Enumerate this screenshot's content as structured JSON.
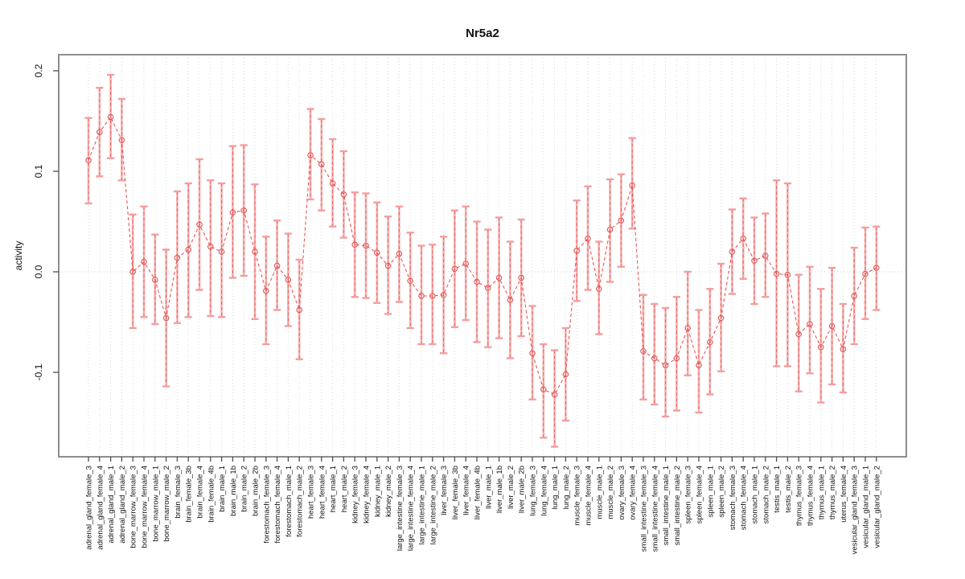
{
  "title": "Nr5a2",
  "y_axis": {
    "label": "activity",
    "tick_labels": [
      "0.2",
      "0.1",
      "0.0",
      "-0.1"
    ],
    "tick_values": [
      0.2,
      0.1,
      0.0,
      -0.1
    ]
  },
  "chart_data": {
    "type": "line",
    "title": "Nr5a2",
    "xlabel": "",
    "ylabel": "activity",
    "ylim": [
      -0.184,
      0.216
    ],
    "yticks": [
      0.2,
      0.1,
      0.0,
      -0.1
    ],
    "grid": "vertical dotted gridline at every category; dotted horizontal line at y=0",
    "legend": "none",
    "marker": "open-circle",
    "line_style": "dashed",
    "error_bars": "95% CI whiskers with caps",
    "categories": [
      "adrenal_gland_female_3",
      "adrenal_gland_female_4",
      "adrenal_gland_male_1",
      "adrenal_gland_male_2",
      "bone_marrow_female_3",
      "bone_marrow_female_4",
      "bone_marrow_male_1",
      "bone_marrow_male_2",
      "brain_female_3",
      "brain_female_3b",
      "brain_female_4",
      "brain_female_4b",
      "brain_male_1",
      "brain_male_1b",
      "brain_male_2",
      "brain_male_2b",
      "forestomach_female_3",
      "forestomach_female_4",
      "forestomach_male_1",
      "forestomach_male_2",
      "heart_female_3",
      "heart_female_4",
      "heart_male_1",
      "heart_male_2",
      "kidney_female_3",
      "kidney_female_4",
      "kidney_male_1",
      "kidney_male_2",
      "large_intestine_female_3",
      "large_intestine_female_4",
      "large_intestine_male_1",
      "large_intestine_male_2",
      "liver_female_3",
      "liver_female_3b",
      "liver_female_4",
      "liver_female_4b",
      "liver_male_1",
      "liver_male_1b",
      "liver_male_2",
      "liver_male_2b",
      "lung_female_3",
      "lung_female_4",
      "lung_male_1",
      "lung_male_2",
      "muscle_female_3",
      "muscle_female_4",
      "muscle_male_1",
      "muscle_male_2",
      "ovary_female_3",
      "ovary_female_4",
      "small_intestine_female_3",
      "small_intestine_female_4",
      "small_intestine_male_1",
      "small_intestine_male_2",
      "spleen_female_3",
      "spleen_female_4",
      "spleen_male_1",
      "spleen_male_2",
      "stomach_female_3",
      "stomach_female_4",
      "stomach_male_1",
      "stomach_male_2",
      "testis_male_1",
      "testis_male_2",
      "thymus_female_3",
      "thymus_female_4",
      "thymus_male_1",
      "thymus_male_2",
      "uterus_female_4",
      "vesicular_gland_female_3",
      "vesicular_gland_male_1",
      "vesicular_gland_male_2"
    ],
    "series": [
      {
        "name": "Nr5a2 activity",
        "values": [
          0.111,
          0.139,
          0.154,
          0.131,
          0.0,
          0.01,
          -0.008,
          -0.046,
          0.014,
          0.022,
          0.047,
          0.025,
          0.02,
          0.059,
          0.061,
          0.02,
          -0.019,
          0.006,
          -0.008,
          -0.038,
          0.116,
          0.107,
          0.088,
          0.077,
          0.027,
          0.026,
          0.019,
          0.006,
          0.018,
          -0.009,
          -0.024,
          -0.024,
          -0.023,
          0.003,
          0.008,
          -0.01,
          -0.016,
          -0.006,
          -0.028,
          -0.006,
          -0.081,
          -0.117,
          -0.122,
          -0.102,
          0.021,
          0.033,
          -0.017,
          0.042,
          0.051,
          0.086,
          -0.079,
          -0.086,
          -0.093,
          -0.086,
          -0.056,
          -0.093,
          -0.07,
          -0.046,
          0.02,
          0.033,
          0.011,
          0.016,
          -0.002,
          -0.003,
          -0.062,
          -0.052,
          -0.075,
          -0.054,
          -0.077,
          -0.024,
          -0.002,
          0.004
        ],
        "ci_low": [
          0.068,
          0.095,
          0.113,
          0.091,
          -0.056,
          -0.045,
          -0.052,
          -0.114,
          -0.051,
          -0.045,
          -0.018,
          -0.044,
          -0.045,
          -0.006,
          -0.004,
          -0.047,
          -0.072,
          -0.038,
          -0.054,
          -0.087,
          0.072,
          0.061,
          0.045,
          0.034,
          -0.025,
          -0.026,
          -0.031,
          -0.042,
          -0.03,
          -0.056,
          -0.072,
          -0.072,
          -0.081,
          -0.055,
          -0.048,
          -0.07,
          -0.075,
          -0.066,
          -0.086,
          -0.064,
          -0.127,
          -0.165,
          -0.174,
          -0.148,
          -0.029,
          -0.018,
          -0.062,
          -0.01,
          0.005,
          0.043,
          -0.127,
          -0.132,
          -0.144,
          -0.138,
          -0.103,
          -0.14,
          -0.122,
          -0.099,
          -0.022,
          -0.007,
          -0.032,
          -0.025,
          -0.094,
          -0.094,
          -0.119,
          -0.101,
          -0.13,
          -0.112,
          -0.12,
          -0.072,
          -0.047,
          -0.038
        ],
        "ci_high": [
          0.153,
          0.183,
          0.196,
          0.172,
          0.057,
          0.065,
          0.037,
          0.022,
          0.08,
          0.088,
          0.112,
          0.091,
          0.088,
          0.125,
          0.126,
          0.087,
          0.035,
          0.051,
          0.038,
          0.012,
          0.162,
          0.152,
          0.132,
          0.12,
          0.079,
          0.078,
          0.069,
          0.055,
          0.065,
          0.039,
          0.026,
          0.027,
          0.035,
          0.061,
          0.065,
          0.05,
          0.042,
          0.054,
          0.03,
          0.052,
          -0.034,
          -0.072,
          -0.078,
          -0.056,
          0.071,
          0.085,
          0.03,
          0.092,
          0.097,
          0.133,
          -0.023,
          -0.032,
          -0.036,
          -0.025,
          0.0,
          -0.038,
          -0.017,
          0.008,
          0.062,
          0.073,
          0.054,
          0.058,
          0.091,
          0.088,
          -0.003,
          0.005,
          -0.017,
          0.004,
          -0.032,
          0.024,
          0.044,
          0.045
        ]
      }
    ],
    "colors": {
      "point": "#e25b5b",
      "series_line": "#ef5252",
      "error_bar": "#f59d9d",
      "error_bar_dash": "#e85f5f",
      "gridline": "#d9d9d9",
      "zero_line": "#cfcfcf",
      "frame": "#828282",
      "tick": "#4d4d4d",
      "text": "#111111"
    }
  }
}
